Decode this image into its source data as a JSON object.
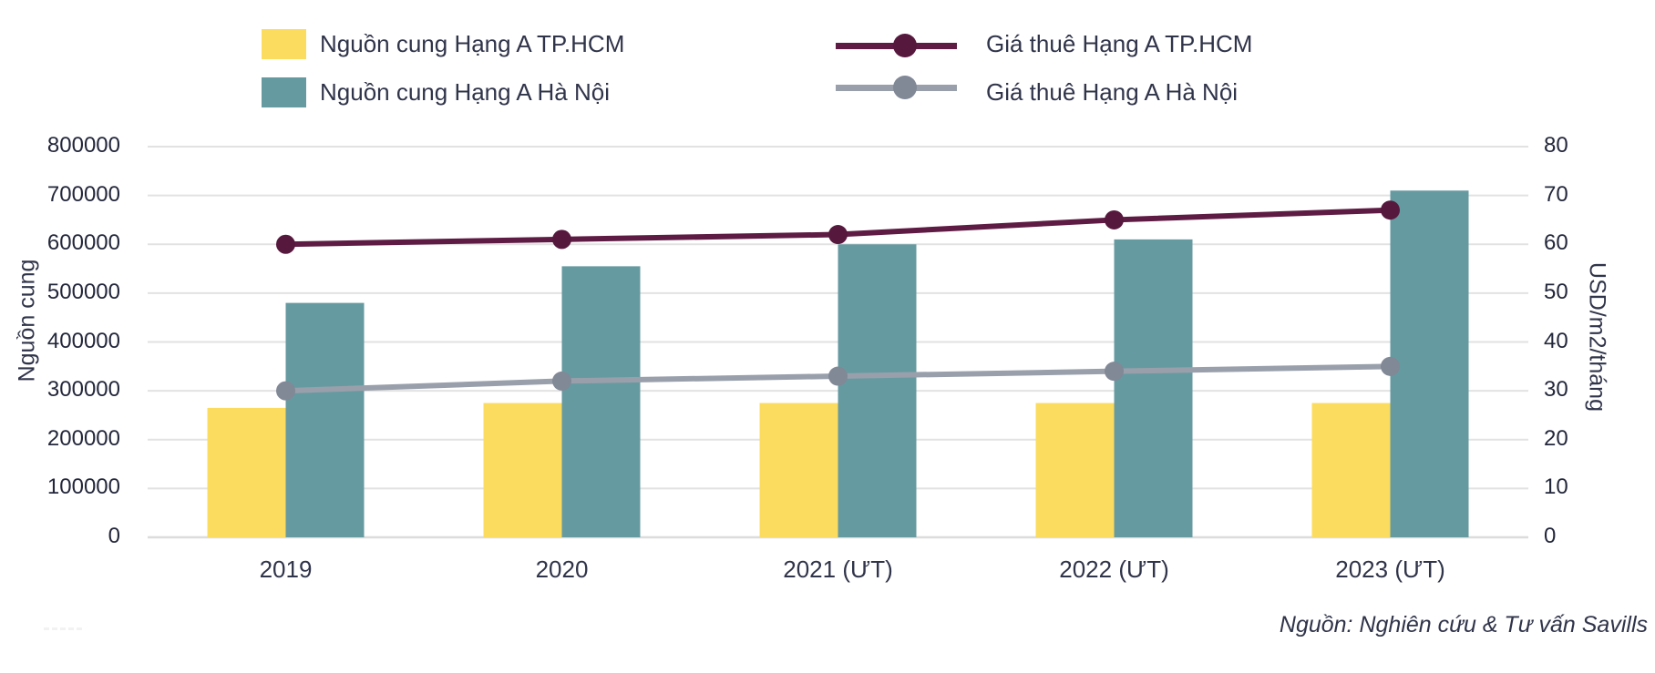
{
  "legend": {
    "items": [
      {
        "label": "Nguồn cung Hạng A TP.HCM",
        "swatch": "bar",
        "series": 0
      },
      {
        "label": "Nguồn cung Hạng A Hà Nội",
        "swatch": "bar",
        "series": 1
      },
      {
        "label": "Giá thuê Hạng A TP.HCM",
        "swatch": "line",
        "series": 0
      },
      {
        "label": "Giá thuê Hạng A Hà Nội",
        "swatch": "line",
        "series": 1
      }
    ]
  },
  "axes": {
    "left_title": "Nguồn cung",
    "right_title": "USD/m2/tháng"
  },
  "source_note": "Nguồn: Nghiên cứu & Tư vấn Savills",
  "colors": {
    "grid": "#E2E2E2",
    "baseline": "#DCDCDC",
    "tick_text": "#23273B",
    "label_text": "#30344A"
  },
  "chart_data": {
    "type": "bar",
    "subtype": "combo-bar-line-dual-axis",
    "categories": [
      "2019",
      "2020",
      "2021 (ƯT)",
      "2022 (ƯT)",
      "2023 (ƯT)"
    ],
    "bar_series": [
      {
        "name": "Nguồn cung Hạng A TP.HCM",
        "axis": "left",
        "color": "#FBDC5F",
        "values": [
          265000,
          275000,
          275000,
          275000,
          275000
        ]
      },
      {
        "name": "Nguồn cung Hạng A Hà Nội",
        "axis": "left",
        "color": "#669AA1",
        "values": [
          480000,
          555000,
          600000,
          610000,
          710000
        ]
      }
    ],
    "line_series": [
      {
        "name": "Giá thuê Hạng A TP.HCM",
        "axis": "right",
        "color": "#5E1C44",
        "marker_color": "#57183E",
        "values": [
          60,
          61,
          62,
          65,
          67
        ]
      },
      {
        "name": "Giá thuê Hạng A Hà Nội",
        "axis": "right",
        "color": "#99A0AB",
        "marker_color": "#818896",
        "values": [
          30,
          32,
          33,
          34,
          35
        ]
      }
    ],
    "left_axis": {
      "title": "Nguồn cung",
      "min": 0,
      "max": 800000,
      "step": 100000
    },
    "right_axis": {
      "title": "USD/m2/tháng",
      "min": 0,
      "max": 80,
      "step": 10
    },
    "grid": true,
    "legend_position": "top"
  }
}
